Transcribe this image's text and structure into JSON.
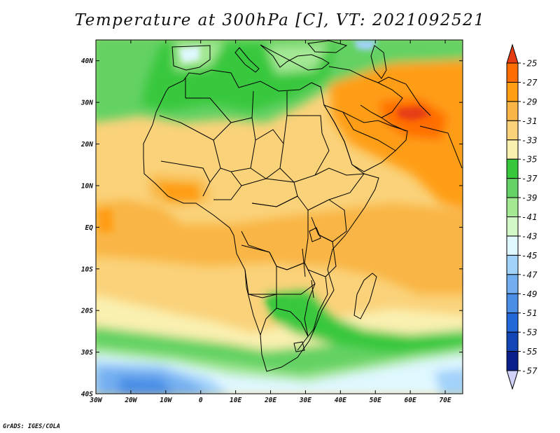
{
  "title": "Temperature at 300hPa [C], VT: 2021092521",
  "credit": "GrADS: IGES/COLA",
  "map": {
    "lon_range": [
      -30,
      75
    ],
    "lat_range": [
      -40,
      45
    ],
    "lon_ticks": [
      {
        "value": -30,
        "label": "30W"
      },
      {
        "value": -20,
        "label": "20W"
      },
      {
        "value": -10,
        "label": "10W"
      },
      {
        "value": 0,
        "label": "0"
      },
      {
        "value": 10,
        "label": "10E"
      },
      {
        "value": 20,
        "label": "20E"
      },
      {
        "value": 30,
        "label": "30E"
      },
      {
        "value": 40,
        "label": "40E"
      },
      {
        "value": 50,
        "label": "50E"
      },
      {
        "value": 60,
        "label": "60E"
      },
      {
        "value": 70,
        "label": "70E"
      }
    ],
    "lat_ticks": [
      {
        "value": 40,
        "label": "40N"
      },
      {
        "value": 30,
        "label": "30N"
      },
      {
        "value": 20,
        "label": "20N"
      },
      {
        "value": 10,
        "label": "10N"
      },
      {
        "value": 0,
        "label": "EQ"
      },
      {
        "value": -10,
        "label": "10S"
      },
      {
        "value": -20,
        "label": "20S"
      },
      {
        "value": -30,
        "label": "30S"
      },
      {
        "value": -40,
        "label": "40S"
      }
    ]
  },
  "colorbar": {
    "labels": [
      "-25",
      "-27",
      "-29",
      "-31",
      "-33",
      "-35",
      "-37",
      "-39",
      "-41",
      "-43",
      "-45",
      "-47",
      "-49",
      "-51",
      "-53",
      "-55",
      "-57"
    ],
    "colors_warm_to_cold": [
      "#e63c12",
      "#ff6e00",
      "#ff9e13",
      "#f9b545",
      "#fad27a",
      "#faf0b0",
      "#37c83c",
      "#64d264",
      "#a4e894",
      "#d2f8c8",
      "#e0f8ff",
      "#a2d2fa",
      "#72aef0",
      "#4a8ee6",
      "#2268d8",
      "#1246b4",
      "#0a1e8c",
      "#d2d2f8"
    ]
  }
}
